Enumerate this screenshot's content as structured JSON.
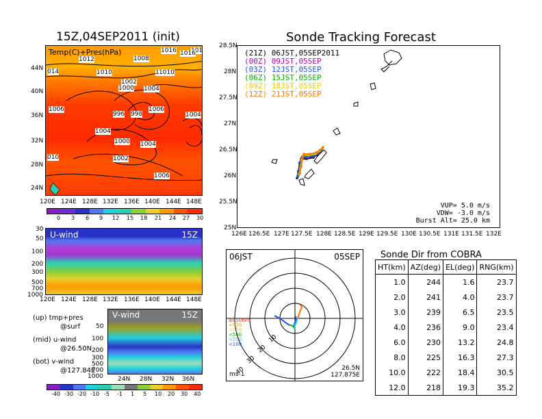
{
  "left": {
    "main_title": "15Z,04SEP2011 (init)",
    "surface_map": {
      "label": "Temp(C)+Pres(hPa)",
      "lat_labels": [
        "44N",
        "40N",
        "36N",
        "32N",
        "28N",
        "24N"
      ],
      "lon_labels": [
        "120E",
        "124E",
        "128E",
        "132E",
        "136E",
        "140E",
        "144E",
        "148E"
      ],
      "isobar_labels": [
        "1012",
        "1010",
        "1008",
        "1008",
        "1002",
        "1000",
        "1004",
        "1010",
        "1016",
        "1006",
        "996",
        "998",
        "1006",
        "1004",
        "1004",
        "1000",
        "1004",
        "1002",
        "1006",
        "010",
        "014",
        "1018",
        "1016"
      ],
      "colorbar_ticks": [
        "0",
        "3",
        "6",
        "9",
        "12",
        "15",
        "18",
        "21",
        "24",
        "27",
        "30"
      ],
      "colorbar_colors": [
        "#8a1fc9",
        "#6a2fd6",
        "#2a33c8",
        "#4d7af0",
        "#22cfe0",
        "#2ad0b4",
        "#8ccf3a",
        "#e6d12f",
        "#ff9a00",
        "#ff5400",
        "#ff2a00"
      ]
    },
    "u_wind": {
      "label": "U-wind",
      "time": "15Z",
      "levels": [
        "30",
        "50",
        "100",
        "200",
        "300",
        "500",
        "700",
        "1000"
      ],
      "lon_labels": [
        "120E",
        "124E",
        "128E",
        "132E",
        "136E",
        "140E",
        "144E",
        "148E"
      ]
    },
    "v_wind": {
      "label": "V-wind",
      "time": "15Z",
      "levels": [
        "50",
        "100",
        "200",
        "300",
        "500",
        "700",
        "1000"
      ],
      "lat_labels": [
        "24N",
        "28N",
        "32N",
        "36N"
      ],
      "colorbar_ticks": [
        "-40",
        "-30",
        "-20",
        "-10",
        "-5",
        "-1",
        "1",
        "5",
        "10",
        "20",
        "30",
        "40"
      ],
      "colorbar_colors": [
        "#8a1fc9",
        "#2a33c8",
        "#4d7af0",
        "#22cfe0",
        "#2ad0b4",
        "#a2ddb7",
        "#777777",
        "#8ccf3a",
        "#e6d12f",
        "#ff9a00",
        "#ff5400",
        "#ff2a00"
      ]
    },
    "legend": {
      "line1": "(up)  tmp+pres",
      "line2": "@surf",
      "line3": "(mid)  u-wind",
      "line4": "@26.50N",
      "line5": "(bot)  v-wind",
      "line6": "@127.84E"
    }
  },
  "tracking": {
    "title": "Sonde Tracking Forecast",
    "launch_times": [
      {
        "text": "(21Z)  06JST,05SEP2011",
        "color": "#000000"
      },
      {
        "text": "(00Z)  09JST,05SEP",
        "color": "#b000b0"
      },
      {
        "text": "(03Z)  12JST,05SEP",
        "color": "#2050ff"
      },
      {
        "text": "(06Z)  15JST,05SEP",
        "color": "#00b000"
      },
      {
        "text": "(09Z)  18JST,05SEP",
        "color": "#f0d000"
      },
      {
        "text": "(12Z)  21JST,05SEP",
        "color": "#ff7000"
      }
    ],
    "lat_ticks": [
      "28.5N",
      "28N",
      "27.5N",
      "27N",
      "26.5N",
      "26N",
      "25.5N",
      "25N"
    ],
    "lon_ticks": [
      "126E",
      "126.5E",
      "127E",
      "127.5E",
      "128E",
      "128.5E",
      "129E",
      "129.5E",
      "130E",
      "130.5E",
      "131E",
      "131.5E",
      "132E"
    ],
    "info_vup": "VUP=  5.0  m/s",
    "info_vdw": "VDW= -3.0  m/s",
    "info_burst": "Burst Alt=  25.0  km"
  },
  "polar": {
    "time": "06JST",
    "date": "05SEP",
    "unit": "ms-1",
    "location_lat": "26.5N",
    "location_lon": "127.875E",
    "ring_labels": [
      "10",
      "20",
      "30",
      "40"
    ],
    "level_legend": [
      {
        "text": "≥850hPa",
        "color": "#ff2a00"
      },
      {
        "text": "<850",
        "color": "#ff9a00"
      },
      {
        "text": "<700",
        "color": "#e6d12f"
      },
      {
        "text": "<500",
        "color": "#00b000"
      },
      {
        "text": "<250",
        "color": "#22cfe0"
      },
      {
        "text": "<100",
        "color": "#2050ff"
      }
    ]
  },
  "table": {
    "title": "Sonde Dir from COBRA",
    "headers": [
      "HT(km)",
      "AZ(deg)",
      "EL(deg)",
      "RNG(km)"
    ],
    "rows": [
      [
        "1.0",
        "244",
        "1.6",
        "23.7"
      ],
      [
        "2.0",
        "241",
        "4.0",
        "23.7"
      ],
      [
        "3.0",
        "239",
        "6.5",
        "23.5"
      ],
      [
        "4.0",
        "236",
        "9.0",
        "23.4"
      ],
      [
        "6.0",
        "230",
        "13.2",
        "24.8"
      ],
      [
        "8.0",
        "225",
        "16.3",
        "27.3"
      ],
      [
        "10.0",
        "222",
        "18.4",
        "30.5"
      ],
      [
        "12.0",
        "218",
        "19.3",
        "35.2"
      ]
    ]
  }
}
